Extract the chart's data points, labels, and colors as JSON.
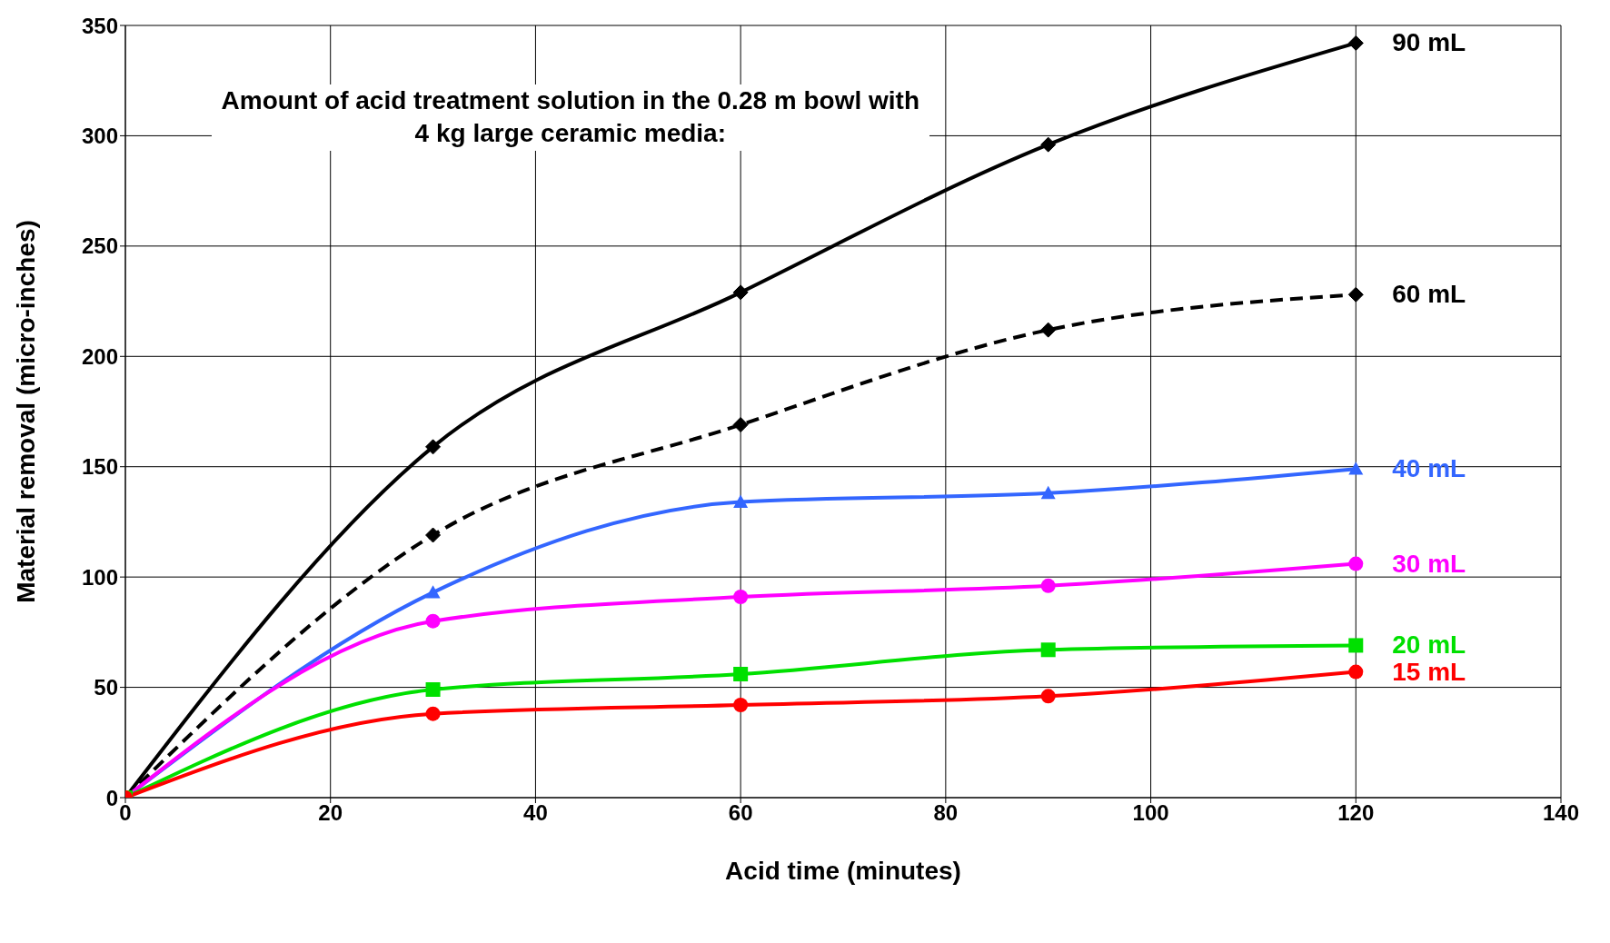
{
  "chart_data": {
    "type": "line",
    "title": "Amount of acid treatment solution in the 0.28 m bowl with 4 kg large ceramic media:",
    "xlabel": "Acid time   (minutes)",
    "ylabel": "Material removal   (micro-inches)",
    "x": [
      0,
      30,
      60,
      90,
      120
    ],
    "xlim": [
      0,
      140
    ],
    "xticks": [
      0,
      20,
      40,
      60,
      80,
      100,
      120,
      140
    ],
    "ylim": [
      0,
      350
    ],
    "yticks": [
      0,
      50,
      100,
      150,
      200,
      250,
      300,
      350
    ],
    "grid": true,
    "legend": false,
    "series": [
      {
        "name": "90 mL",
        "color": "#000000",
        "marker": "diamond",
        "line_style": "solid",
        "values": [
          0,
          159,
          229,
          296,
          342
        ]
      },
      {
        "name": "60 mL",
        "color": "#000000",
        "marker": "diamond",
        "line_style": "dashed",
        "values": [
          0,
          119,
          169,
          212,
          228
        ]
      },
      {
        "name": "40 mL",
        "color": "#3366ff",
        "marker": "triangle",
        "line_style": "solid",
        "values": [
          0,
          93,
          134,
          138,
          149
        ]
      },
      {
        "name": "30 mL",
        "color": "#ff00ff",
        "marker": "circle",
        "line_style": "solid",
        "values": [
          0,
          80,
          91,
          96,
          106
        ]
      },
      {
        "name": "20 mL",
        "color": "#00e000",
        "marker": "square",
        "line_style": "solid",
        "values": [
          0,
          49,
          56,
          67,
          69
        ]
      },
      {
        "name": "15 mL",
        "color": "#ff0000",
        "marker": "circle",
        "line_style": "solid",
        "values": [
          0,
          38,
          42,
          46,
          57
        ]
      }
    ]
  }
}
